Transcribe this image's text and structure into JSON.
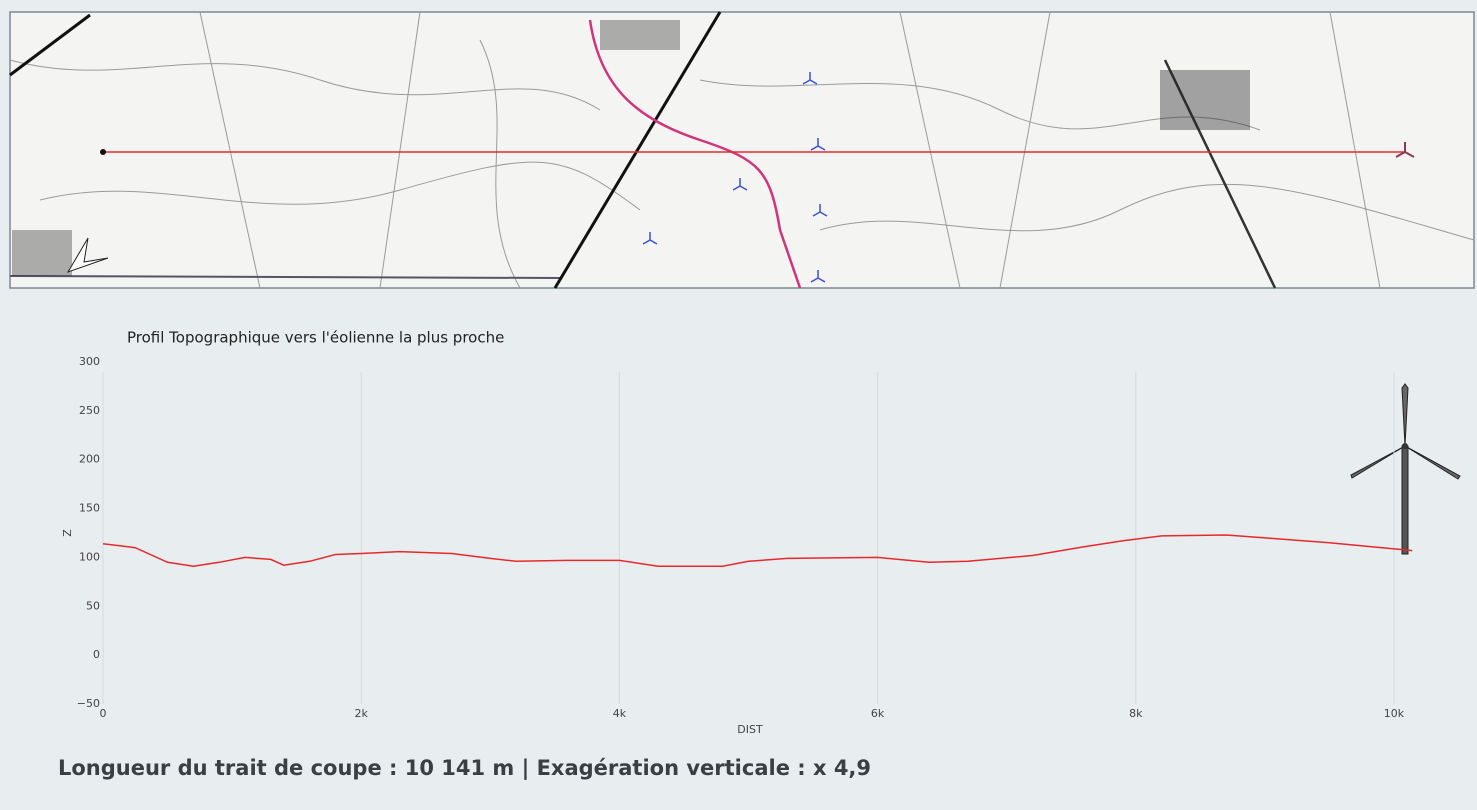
{
  "chart_data": {
    "type": "line",
    "title": "Profil Topographique vers l'éolienne la plus proche",
    "x_label": "DIST",
    "y_label": "Z",
    "x": [
      0,
      250,
      500,
      700,
      900,
      1100,
      1300,
      1400,
      1600,
      1800,
      2000,
      2300,
      2700,
      3000,
      3200,
      3600,
      4000,
      4300,
      4800,
      5000,
      5300,
      6000,
      6400,
      6700,
      7200,
      7600,
      7900,
      8200,
      8700,
      9000,
      9500,
      10141
    ],
    "values": [
      114,
      110,
      95,
      91,
      95,
      100,
      98,
      92,
      96,
      103,
      104,
      106,
      104,
      99,
      96,
      97,
      97,
      91,
      91,
      96,
      99,
      100,
      95,
      96,
      102,
      111,
      117,
      122,
      123,
      120,
      115,
      107
    ],
    "color": "#e8292b",
    "xlim": [
      0,
      10550
    ],
    "ylim": [
      -50,
      300
    ],
    "xticks": [
      0,
      {
        "value": 2000,
        "label": "2k"
      },
      {
        "value": 4000,
        "label": "4k"
      },
      {
        "value": 6000,
        "label": "6k"
      },
      {
        "value": 8000,
        "label": "8k"
      },
      {
        "value": 10000,
        "label": "10k"
      }
    ],
    "yticks": [
      {
        "value": -50,
        "label": "−50"
      },
      0,
      50,
      100,
      150,
      200,
      250,
      300
    ],
    "grid": true
  },
  "footer": "Longueur du trait de coupe : 10 141 m  |  Exagération verticale : x 4,9"
}
